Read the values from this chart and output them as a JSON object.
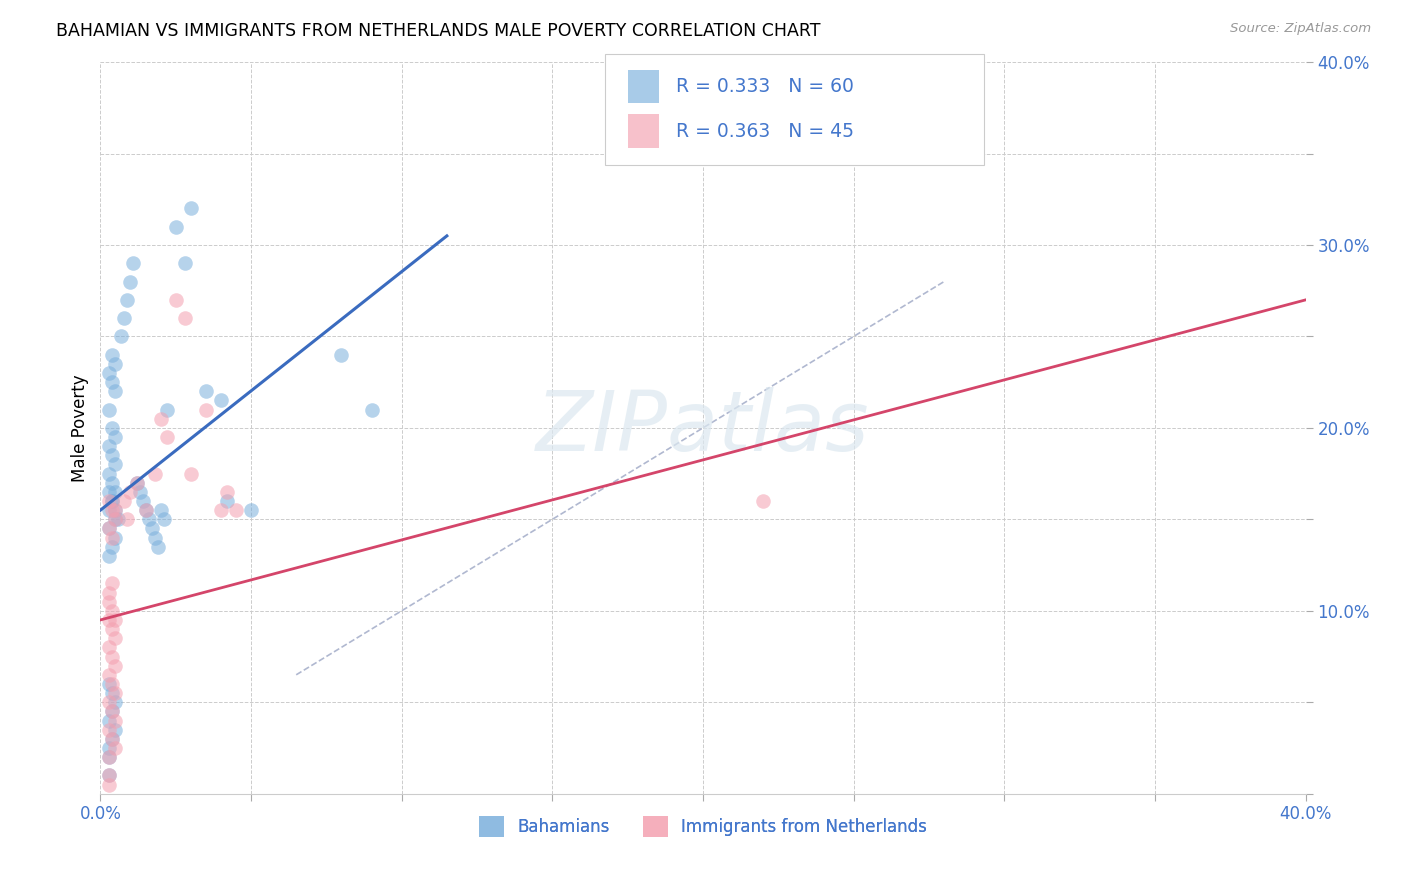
{
  "title": "BAHAMIAN VS IMMIGRANTS FROM NETHERLANDS MALE POVERTY CORRELATION CHART",
  "source": "Source: ZipAtlas.com",
  "ylabel": "Male Poverty",
  "xlim": [
    0.0,
    0.4
  ],
  "ylim": [
    0.0,
    0.4
  ],
  "xticks": [
    0.0,
    0.05,
    0.1,
    0.15,
    0.2,
    0.25,
    0.3,
    0.35,
    0.4
  ],
  "yticks": [
    0.0,
    0.05,
    0.1,
    0.15,
    0.2,
    0.25,
    0.3,
    0.35,
    0.4
  ],
  "grid_color": "#cccccc",
  "background_color": "#ffffff",
  "watermark_text": "ZIPatlas",
  "legend_R1": "R = 0.333",
  "legend_N1": "N = 60",
  "legend_R2": "R = 0.363",
  "legend_N2": "N = 45",
  "blue_color": "#7aafdc",
  "pink_color": "#f4a0b0",
  "blue_line_color": "#3a6bbf",
  "pink_line_color": "#d4456a",
  "dashed_line_color": "#b0b8d0",
  "legend_label1": "Bahamians",
  "legend_label2": "Immigrants from Netherlands",
  "blue_scatter_x": [
    0.003,
    0.004,
    0.005,
    0.006,
    0.003,
    0.005,
    0.004,
    0.003,
    0.005,
    0.004,
    0.003,
    0.005,
    0.004,
    0.003,
    0.005,
    0.004,
    0.003,
    0.005,
    0.004,
    0.003,
    0.005,
    0.004,
    0.003,
    0.005,
    0.004,
    0.007,
    0.008,
    0.009,
    0.01,
    0.011,
    0.012,
    0.013,
    0.014,
    0.015,
    0.016,
    0.017,
    0.018,
    0.019,
    0.02,
    0.021,
    0.022,
    0.025,
    0.028,
    0.03,
    0.035,
    0.04,
    0.042,
    0.05,
    0.08,
    0.09,
    0.003,
    0.004,
    0.005,
    0.004,
    0.003,
    0.005,
    0.004,
    0.003,
    0.003,
    0.003
  ],
  "blue_scatter_y": [
    0.155,
    0.16,
    0.165,
    0.15,
    0.145,
    0.14,
    0.135,
    0.13,
    0.155,
    0.16,
    0.165,
    0.15,
    0.17,
    0.175,
    0.18,
    0.185,
    0.19,
    0.195,
    0.2,
    0.21,
    0.22,
    0.225,
    0.23,
    0.235,
    0.24,
    0.25,
    0.26,
    0.27,
    0.28,
    0.29,
    0.17,
    0.165,
    0.16,
    0.155,
    0.15,
    0.145,
    0.14,
    0.135,
    0.155,
    0.15,
    0.21,
    0.31,
    0.29,
    0.32,
    0.22,
    0.215,
    0.16,
    0.155,
    0.24,
    0.21,
    0.06,
    0.055,
    0.05,
    0.045,
    0.04,
    0.035,
    0.03,
    0.025,
    0.02,
    0.01
  ],
  "pink_scatter_x": [
    0.003,
    0.004,
    0.005,
    0.003,
    0.004,
    0.005,
    0.003,
    0.004,
    0.005,
    0.003,
    0.004,
    0.005,
    0.003,
    0.004,
    0.005,
    0.008,
    0.009,
    0.01,
    0.012,
    0.015,
    0.018,
    0.02,
    0.022,
    0.025,
    0.028,
    0.03,
    0.035,
    0.04,
    0.042,
    0.045,
    0.003,
    0.004,
    0.005,
    0.003,
    0.004,
    0.005,
    0.003,
    0.004,
    0.005,
    0.003,
    0.004,
    0.003,
    0.22,
    0.003,
    0.003
  ],
  "pink_scatter_y": [
    0.095,
    0.09,
    0.085,
    0.08,
    0.075,
    0.07,
    0.065,
    0.06,
    0.055,
    0.05,
    0.045,
    0.04,
    0.035,
    0.03,
    0.025,
    0.16,
    0.15,
    0.165,
    0.17,
    0.155,
    0.175,
    0.205,
    0.195,
    0.27,
    0.26,
    0.175,
    0.21,
    0.155,
    0.165,
    0.155,
    0.105,
    0.1,
    0.095,
    0.11,
    0.115,
    0.155,
    0.16,
    0.155,
    0.15,
    0.145,
    0.14,
    0.01,
    0.16,
    0.02,
    0.005
  ],
  "blue_line_x": [
    0.0,
    0.115
  ],
  "blue_line_y": [
    0.155,
    0.305
  ],
  "pink_line_x": [
    0.0,
    0.4
  ],
  "pink_line_y": [
    0.095,
    0.27
  ],
  "dashed_line_x": [
    0.065,
    0.28
  ],
  "dashed_line_y": [
    0.065,
    0.28
  ]
}
